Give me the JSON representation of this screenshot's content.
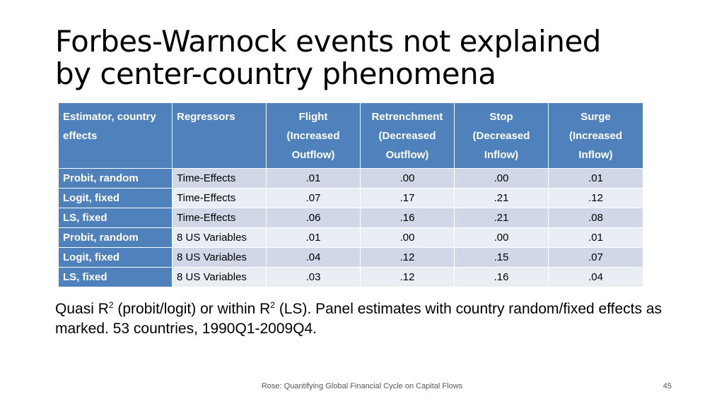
{
  "title": {
    "line1": "Forbes-Warnock events not explained",
    "line2": "by center-country phenomena"
  },
  "table": {
    "headers": [
      {
        "line1": "Estimator, country",
        "line2": "effects",
        "line3": ""
      },
      {
        "line1": "Regressors",
        "line2": "",
        "line3": ""
      },
      {
        "line1": "Flight",
        "line2": "(Increased",
        "line3": "Outflow)"
      },
      {
        "line1": "Retrenchment",
        "line2": "(Decreased",
        "line3": "Outflow)"
      },
      {
        "line1": "Stop",
        "line2": "(Decreased",
        "line3": "Inflow)"
      },
      {
        "line1": "Surge",
        "line2": "(Increased",
        "line3": "Inflow)"
      }
    ],
    "rows": [
      {
        "estimator": "Probit, random",
        "regressors": "Time-Effects",
        "values": [
          ".01",
          ".00",
          ".00",
          ".01"
        ]
      },
      {
        "estimator": "Logit, fixed",
        "regressors": "Time-Effects",
        "values": [
          ".07",
          ".17",
          ".21",
          ".12"
        ]
      },
      {
        "estimator": "LS, fixed",
        "regressors": "Time-Effects",
        "values": [
          ".06",
          ".16",
          ".21",
          ".08"
        ]
      },
      {
        "estimator": "Probit, random",
        "regressors": "8 US Variables",
        "values": [
          ".01",
          ".00",
          ".00",
          ".01"
        ]
      },
      {
        "estimator": "Logit, fixed",
        "regressors": "8 US Variables",
        "values": [
          ".04",
          ".12",
          ".15",
          ".07"
        ]
      },
      {
        "estimator": "LS, fixed",
        "regressors": "8 US Variables",
        "values": [
          ".03",
          ".12",
          ".16",
          ".04"
        ]
      }
    ]
  },
  "note": {
    "part1": "Quasi R",
    "sup1": "2",
    "part2": " (probit/logit) or within R",
    "sup2": "2",
    "part3": " (LS). Panel estimates with country random/fixed effects as marked. 53 countries, 1990Q1-2009Q4."
  },
  "footer": {
    "text": "Rose: Quantifying Global Financial Cycle on Capital Flows",
    "page": "45"
  },
  "colors": {
    "header_bg": "#4f81bd",
    "row_odd": "#d0d8e8",
    "row_even": "#e9edf4"
  }
}
